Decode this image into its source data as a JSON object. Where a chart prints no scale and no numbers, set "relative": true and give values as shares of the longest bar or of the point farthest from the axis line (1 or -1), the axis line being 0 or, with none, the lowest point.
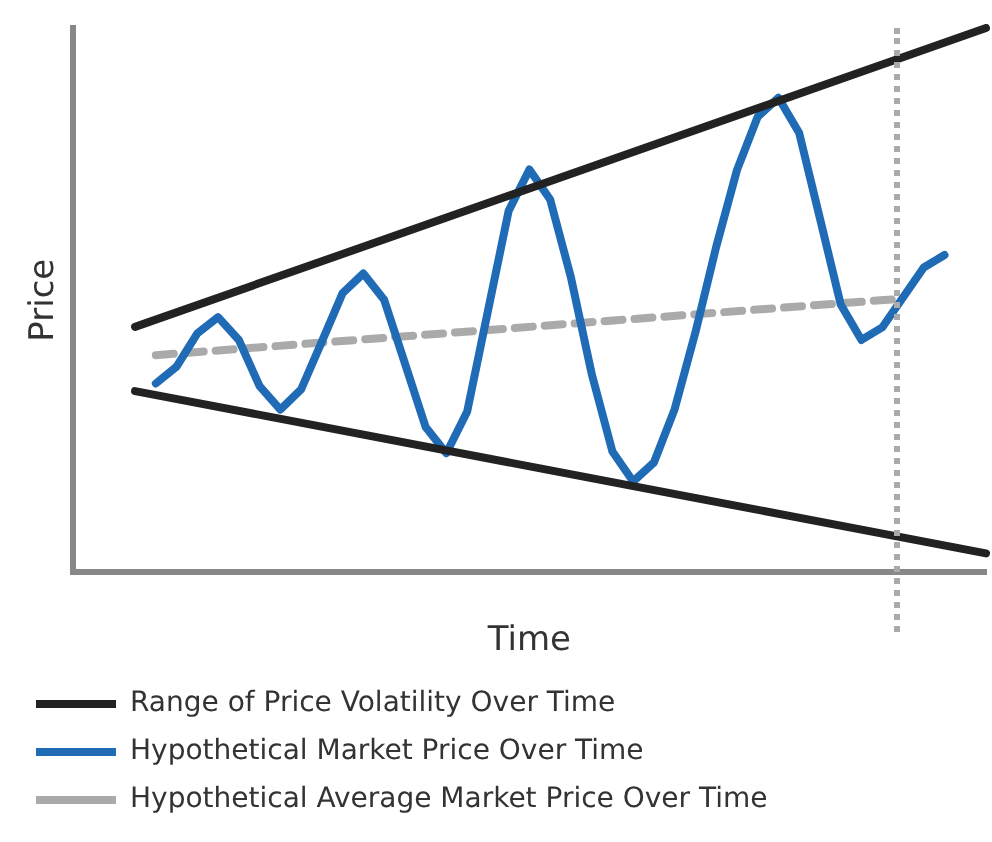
{
  "chart_data": {
    "type": "line",
    "relative": true,
    "xlabel": "Time",
    "ylabel": "Price",
    "grid": false,
    "legend": "bottom",
    "marker": "none",
    "categories": [
      null,
      null,
      null,
      null,
      null,
      null,
      null,
      null,
      null,
      null,
      null,
      null,
      null,
      null,
      null,
      null,
      null,
      null,
      null,
      null,
      null,
      null,
      null,
      null,
      null,
      null,
      null,
      null,
      null,
      null,
      null,
      null,
      null,
      null,
      null,
      null,
      null,
      null,
      null,
      null,
      null,
      null,
      null,
      null,
      null
    ],
    "series": [
      {
        "name": "Range of Price Volatility Over Time",
        "color": "#222222",
        "line_style": "solid",
        "values": [
          null,
          null,
          null,
          0.451,
          null,
          null,
          null,
          null,
          null,
          null,
          null,
          null,
          null,
          null,
          null,
          null,
          null,
          null,
          null,
          null,
          null,
          null,
          null,
          null,
          null,
          null,
          null,
          null,
          null,
          null,
          null,
          null,
          null,
          null,
          null,
          null,
          null,
          null,
          null,
          null,
          null,
          null,
          null,
          null,
          1
        ]
      },
      {
        "color": "#222222",
        "line_style": "solid",
        "values": [
          null,
          null,
          null,
          0.333,
          null,
          null,
          null,
          null,
          null,
          null,
          null,
          null,
          null,
          null,
          null,
          null,
          null,
          null,
          null,
          null,
          null,
          null,
          null,
          null,
          null,
          null,
          null,
          null,
          null,
          null,
          null,
          null,
          null,
          null,
          null,
          null,
          null,
          null,
          null,
          null,
          null,
          null,
          null,
          null,
          0.035
        ]
      },
      {
        "name": "Hypothetical Market Price Over Time",
        "color": "#1f6bb5",
        "line_style": "solid",
        "values": [
          null,
          null,
          null,
          null,
          0.347,
          0.378,
          0.439,
          0.469,
          0.427,
          0.342,
          0.299,
          0.336,
          0.424,
          0.513,
          0.549,
          0.501,
          0.384,
          0.267,
          0.219,
          0.295,
          0.48,
          0.664,
          0.74,
          0.685,
          0.542,
          0.365,
          0.222,
          0.167,
          0.202,
          0.3,
          0.441,
          0.598,
          0.739,
          0.837,
          0.872,
          0.807,
          0.65,
          0.492,
          0.427,
          0.45,
          0.505,
          0.56,
          0.583,
          null,
          null
        ]
      },
      {
        "name": "Hypothetical Average Market Price Over Time",
        "color": "#aaaaaa",
        "line_style": "dashed",
        "values": [
          null,
          null,
          null,
          null,
          0.399,
          null,
          null,
          null,
          null,
          null,
          null,
          null,
          null,
          null,
          null,
          null,
          null,
          null,
          null,
          null,
          null,
          null,
          null,
          null,
          null,
          null,
          null,
          null,
          null,
          null,
          null,
          null,
          null,
          null,
          null,
          null,
          null,
          null,
          null,
          null,
          0.503,
          null,
          null,
          null,
          null
        ]
      }
    ]
  }
}
